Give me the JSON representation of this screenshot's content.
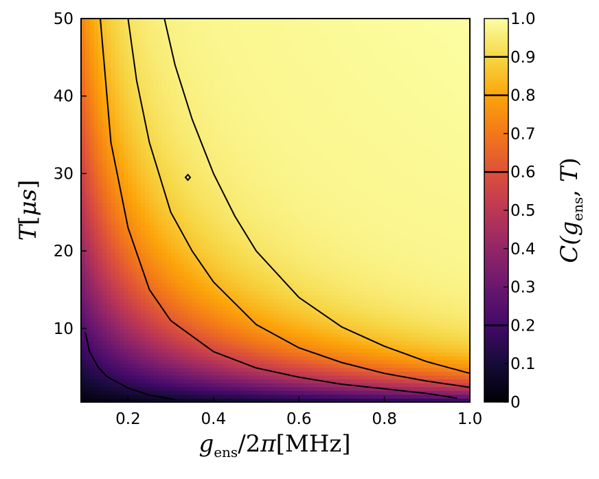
{
  "chart_data": {
    "type": "heatmap",
    "title": "",
    "x_axis": {
      "label_parts": [
        "g",
        "ens",
        "/2",
        "π",
        "[MHz]"
      ],
      "range": [
        0.09,
        1.0
      ],
      "ticks": [
        0.2,
        0.4,
        0.6,
        0.8,
        1.0
      ],
      "tick_labels": [
        "0.2",
        "0.4",
        "0.6",
        "0.8",
        "1.0"
      ]
    },
    "y_axis": {
      "label_parts": [
        "T",
        "[",
        "μs",
        "]"
      ],
      "range": [
        0.5,
        50
      ],
      "ticks": [
        10,
        20,
        30,
        40,
        50
      ],
      "tick_labels": [
        "10",
        "20",
        "30",
        "40",
        "50"
      ]
    },
    "colorbar": {
      "label_parts": [
        "C(",
        "g",
        "ens",
        ", ",
        "T",
        ")"
      ],
      "colormap": "inferno",
      "range": [
        0,
        1
      ],
      "ticks": [
        0,
        0.1,
        0.2,
        0.3,
        0.4,
        0.5,
        0.6,
        0.7,
        0.8,
        0.9,
        1.0
      ],
      "tick_labels": [
        "0",
        "0.1",
        "0.2",
        "0.3",
        "0.4",
        "0.5",
        "0.6",
        "0.7",
        "0.8",
        "0.9",
        "1.0"
      ],
      "contour_marks": [
        0.2,
        0.6,
        0.8,
        0.9
      ]
    },
    "contour_levels": [
      0.2,
      0.6,
      0.8,
      0.9
    ],
    "contours": [
      {
        "level": 0.2,
        "points": [
          [
            0.1,
            9.5
          ],
          [
            0.11,
            7.0
          ],
          [
            0.13,
            5.0
          ],
          [
            0.15,
            3.8
          ],
          [
            0.2,
            2.3
          ],
          [
            0.25,
            1.4
          ],
          [
            0.31,
            0.8
          ]
        ]
      },
      {
        "level": 0.6,
        "points": [
          [
            0.135,
            50
          ],
          [
            0.16,
            34
          ],
          [
            0.2,
            23
          ],
          [
            0.25,
            15
          ],
          [
            0.3,
            11
          ],
          [
            0.4,
            7.0
          ],
          [
            0.5,
            4.9
          ],
          [
            0.6,
            3.7
          ],
          [
            0.7,
            2.8
          ],
          [
            0.8,
            2.2
          ],
          [
            0.9,
            1.6
          ],
          [
            0.97,
            1.0
          ]
        ]
      },
      {
        "level": 0.8,
        "points": [
          [
            0.2,
            50
          ],
          [
            0.22,
            42
          ],
          [
            0.25,
            34
          ],
          [
            0.3,
            25
          ],
          [
            0.35,
            20
          ],
          [
            0.4,
            16
          ],
          [
            0.5,
            10.5
          ],
          [
            0.6,
            7.5
          ],
          [
            0.7,
            5.6
          ],
          [
            0.8,
            4.2
          ],
          [
            0.9,
            3.2
          ],
          [
            1.0,
            2.4
          ]
        ]
      },
      {
        "level": 0.9,
        "points": [
          [
            0.285,
            50
          ],
          [
            0.31,
            44
          ],
          [
            0.35,
            37
          ],
          [
            0.4,
            30
          ],
          [
            0.45,
            24.5
          ],
          [
            0.5,
            20
          ],
          [
            0.6,
            14
          ],
          [
            0.7,
            10.2
          ],
          [
            0.8,
            7.7
          ],
          [
            0.9,
            5.7
          ],
          [
            1.0,
            4.2
          ]
        ]
      }
    ],
    "marker": {
      "x": 0.34,
      "y": 29.5
    }
  }
}
